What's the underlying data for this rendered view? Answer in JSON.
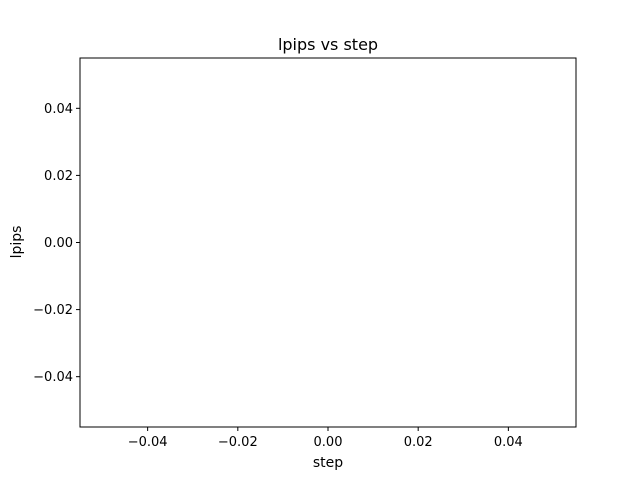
{
  "chart_data": {
    "type": "line",
    "title": "lpips vs step",
    "xlabel": "step",
    "ylabel": "lpips",
    "xlim": [
      -0.055,
      0.055
    ],
    "ylim": [
      -0.055,
      0.055
    ],
    "x_ticks": [
      -0.04,
      -0.02,
      0.0,
      0.02,
      0.04
    ],
    "x_tick_labels": [
      "−0.04",
      "−0.02",
      "0.00",
      "0.02",
      "0.04"
    ],
    "y_ticks": [
      -0.04,
      -0.02,
      0.0,
      0.02,
      0.04
    ],
    "y_tick_labels": [
      "−0.04",
      "−0.02",
      "0.00",
      "0.02",
      "0.04"
    ],
    "grid": false,
    "series": [
      {
        "x": [],
        "y": []
      }
    ]
  }
}
